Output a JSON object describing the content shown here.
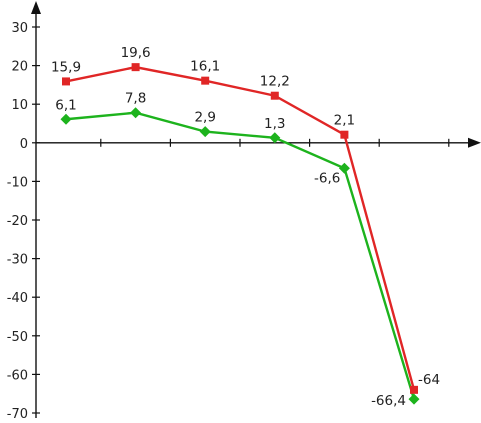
{
  "chart_data": {
    "type": "line",
    "title": "",
    "xlabel": "",
    "ylabel": "",
    "ylim": [
      -70,
      30
    ],
    "yticks": [
      "30",
      "20",
      "10",
      "0",
      "-10",
      "-20",
      "-30",
      "-40",
      "-50",
      "-60",
      "-70"
    ],
    "grid": false,
    "legend": "none",
    "x": [
      1,
      2,
      3,
      4,
      5,
      6
    ],
    "series": [
      {
        "color": "#e02626",
        "marker": "square",
        "values": [
          15.9,
          19.6,
          16.1,
          12.2,
          2.1,
          -64
        ],
        "labels": [
          "15,9",
          "19,6",
          "16,1",
          "12,2",
          "2,1",
          "-64"
        ]
      },
      {
        "color": "#1db31d",
        "marker": "diamond",
        "values": [
          6.1,
          7.8,
          2.9,
          1.3,
          -6.6,
          -66.4
        ],
        "labels": [
          "6,1",
          "7,8",
          "2,9",
          "1,3",
          "-6,6",
          "-66,4"
        ]
      }
    ]
  }
}
